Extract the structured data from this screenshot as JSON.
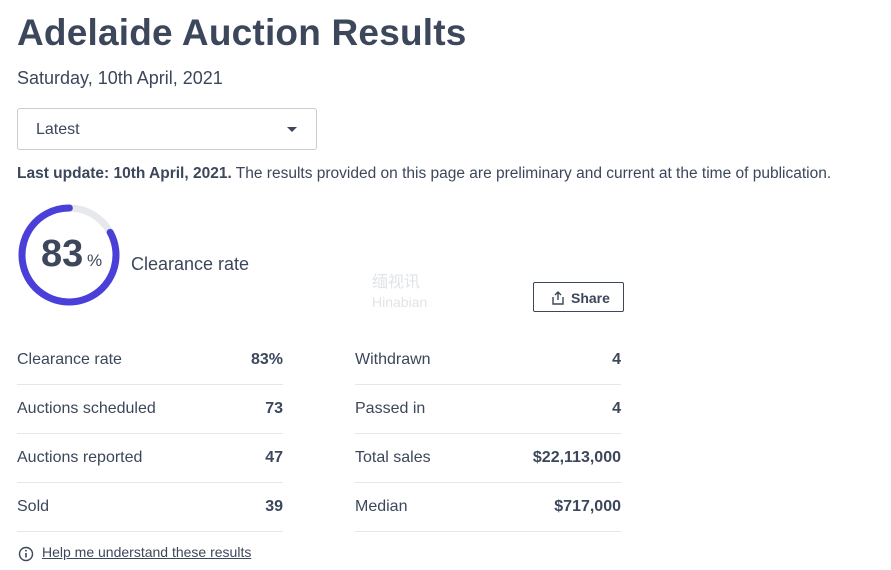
{
  "page": {
    "title": "Adelaide Auction Results",
    "date": "Saturday, 10th April, 2021"
  },
  "filter": {
    "selected": "Latest"
  },
  "update": {
    "bold": "Last update: 10th April, 2021.",
    "text": " The results provided on this page are preliminary and current at the time of publication."
  },
  "gauge": {
    "value": "83",
    "unit": "%",
    "label": "Clearance rate",
    "fraction": 0.83,
    "colors": {
      "fill": "#4a3fd8",
      "track": "#e6e8ec"
    }
  },
  "watermark": {
    "text": "缅视讯",
    "sub": "Hinabian"
  },
  "share": {
    "label": "Share",
    "icon": "share-icon"
  },
  "stats_left": [
    {
      "label": "Clearance rate",
      "value": "83%"
    },
    {
      "label": "Auctions scheduled",
      "value": "73"
    },
    {
      "label": "Auctions reported",
      "value": "47"
    },
    {
      "label": "Sold",
      "value": "39"
    }
  ],
  "stats_right": [
    {
      "label": "Withdrawn",
      "value": "4"
    },
    {
      "label": "Passed in",
      "value": "4"
    },
    {
      "label": "Total sales",
      "value": "$22,113,000"
    },
    {
      "label": "Median",
      "value": "$717,000"
    }
  ],
  "help": {
    "label": "Help me understand these results",
    "icon": "info-icon"
  }
}
